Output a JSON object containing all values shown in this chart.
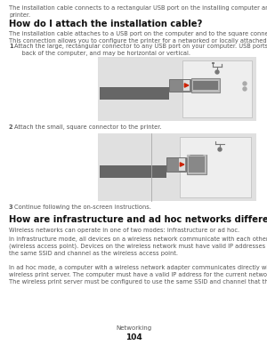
{
  "bg_color": "#ffffff",
  "text_color": "#555555",
  "heading_color": "#111111",
  "arrow_color": "#cc2200",
  "diagram1_bg": "#e0e0e0",
  "diagram2_bg": "#e0e0e0",
  "wall_color": "#eeeeee",
  "wall_edge": "#bbbbbb",
  "port_fill": "#cccccc",
  "port_edge": "#888888",
  "connector_fill": "#888888",
  "connector_edge": "#555555",
  "cable_fill": "#666666",
  "intro_text": "The installation cable connects to a rectangular USB port on the installing computer and the square USB port on the\nprinter.",
  "heading1": "How do I attach the installation cable?",
  "para1": "The installation cable attaches to a USB port on the computer and to the square connector on the back of the printer.\nThis connection allows you to configure the printer for a networked or locally attached installation.",
  "step1_text": "Attach the large, rectangular connector to any USB port on your computer. USB ports may be on the front or the\n    back of the computer, and may be horizontal or vertical.",
  "step2_text": "Attach the small, square connector to the printer.",
  "step3_text": "Continue following the on-screen instructions.",
  "heading2": "How are infrastructure and ad hoc networks different?",
  "para2": "Wireless networks can operate in one of two modes: infrastructure or ad hoc.",
  "para3": "In infrastructure mode, all devices on a wireless network communicate with each other through a wireless router\n(wireless access point). Devices on the wireless network must have valid IP addresses for the current network and share\nthe same SSID and channel as the wireless access point.",
  "para4": "In ad hoc mode, a computer with a wireless network adapter communicates directly with a printer equipped with a\nwireless print server. The computer must have a valid IP address for the current network and be set to ad hoc mode.\nThe wireless print server must be configured to use the same SSID and channel that the computer is using.",
  "footer_label": "Networking",
  "footer_page": "104",
  "fs_body": 4.8,
  "fs_heading": 7.2,
  "fs_footer": 5.0
}
